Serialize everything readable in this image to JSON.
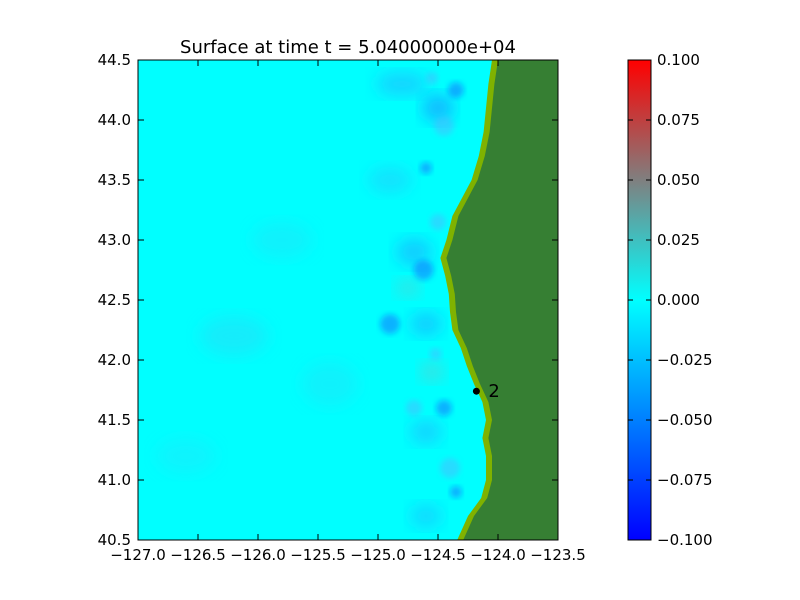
{
  "chart_data": {
    "type": "heatmap",
    "title": "Surface at time t = 5.04000000e+04",
    "xlabel": "",
    "ylabel": "",
    "xlim": [
      -127.0,
      -123.5
    ],
    "ylim": [
      40.5,
      44.5
    ],
    "x_ticks": [
      -127.0,
      -126.5,
      -126.0,
      -125.5,
      -125.0,
      -124.5,
      -124.0,
      -123.5
    ],
    "x_tick_labels": [
      "−127.0",
      "−126.5",
      "−126.0",
      "−125.5",
      "−125.0",
      "−124.5",
      "−124.0",
      "−123.5"
    ],
    "y_ticks": [
      40.5,
      41.0,
      41.5,
      42.0,
      42.5,
      43.0,
      43.5,
      44.0,
      44.5
    ],
    "y_tick_labels": [
      "40.5",
      "41.0",
      "41.5",
      "42.0",
      "42.5",
      "43.0",
      "43.5",
      "44.0",
      "44.5"
    ],
    "colorbar": {
      "range": [
        -0.1,
        0.1
      ],
      "ticks": [
        -0.1,
        -0.075,
        -0.05,
        -0.025,
        0.0,
        0.025,
        0.05,
        0.075,
        0.1
      ],
      "tick_labels": [
        "−0.100",
        "−0.075",
        "−0.050",
        "−0.025",
        "0.000",
        "0.025",
        "0.050",
        "0.075",
        "0.100"
      ],
      "colors": [
        "#0000ff",
        "#00ffff",
        "#ff0000"
      ]
    },
    "gauges": [
      {
        "label": "2",
        "x": -124.18,
        "y": 41.74
      }
    ],
    "coastline": [
      [
        -124.05,
        44.5
      ],
      [
        -124.08,
        44.3
      ],
      [
        -124.1,
        44.1
      ],
      [
        -124.12,
        43.9
      ],
      [
        -124.16,
        43.7
      ],
      [
        -124.22,
        43.5
      ],
      [
        -124.3,
        43.35
      ],
      [
        -124.38,
        43.2
      ],
      [
        -124.43,
        43.0
      ],
      [
        -124.48,
        42.85
      ],
      [
        -124.44,
        42.7
      ],
      [
        -124.41,
        42.55
      ],
      [
        -124.4,
        42.4
      ],
      [
        -124.38,
        42.25
      ],
      [
        -124.31,
        42.1
      ],
      [
        -124.26,
        41.95
      ],
      [
        -124.2,
        41.8
      ],
      [
        -124.13,
        41.65
      ],
      [
        -124.1,
        41.5
      ],
      [
        -124.13,
        41.35
      ],
      [
        -124.1,
        41.2
      ],
      [
        -124.1,
        41.0
      ],
      [
        -124.14,
        40.85
      ],
      [
        -124.25,
        40.7
      ],
      [
        -124.34,
        40.5
      ]
    ],
    "land_color": "#367f33",
    "shore_color": "#7fb200",
    "water_color": "#00ffff",
    "grid": false
  }
}
